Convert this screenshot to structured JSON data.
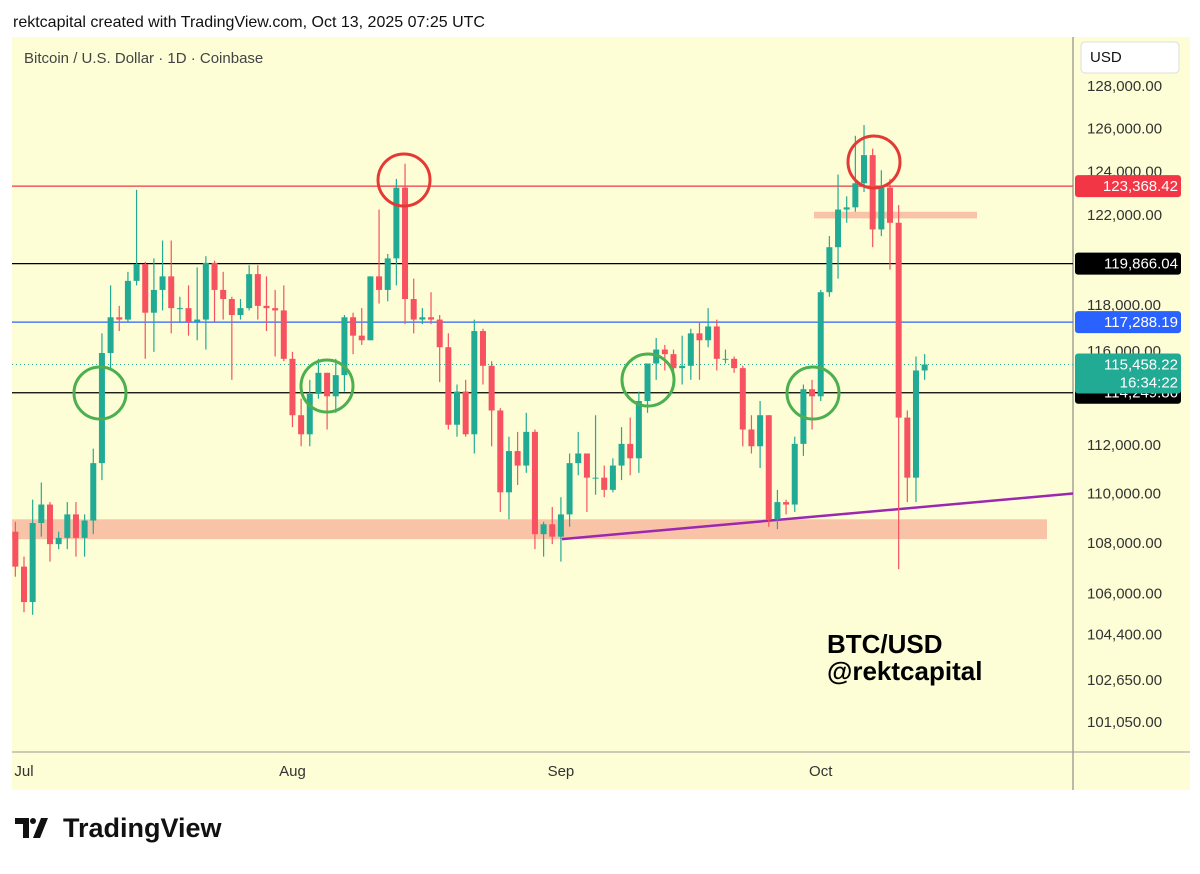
{
  "header": "rektcapital created with TradingView.com, Oct 13, 2025 07:25 UTC",
  "footer": {
    "brand": "TradingView"
  },
  "chart_data": {
    "type": "candlestick",
    "title": "Bitcoin / U.S. Dollar · 1D · Coinbase",
    "currency": "USD",
    "annotations": [
      "BTC/USD",
      "@rektcapital"
    ],
    "log_scale": true,
    "up_color": "#22ab94",
    "down_color": "#f7525f",
    "ylim": [
      99970,
      130400
    ],
    "yticks": [
      {
        "value": 128000,
        "label": "128,000.00"
      },
      {
        "value": 126000,
        "label": "126,000.00"
      },
      {
        "value": 124000,
        "label": "124,000.00"
      },
      {
        "value": 122000,
        "label": "122,000.00"
      },
      {
        "value": 118000,
        "label": "118,000.00"
      },
      {
        "value": 116000,
        "label": "116,000.00"
      },
      {
        "value": 112000,
        "label": "112,000.00"
      },
      {
        "value": 110000,
        "label": "110,000.00"
      },
      {
        "value": 108000,
        "label": "108,000.00"
      },
      {
        "value": 106000,
        "label": "106,000.00"
      },
      {
        "value": 104400,
        "label": "104,400.00"
      },
      {
        "value": 102650,
        "label": "102,650.00"
      },
      {
        "value": 101050,
        "label": "101,050.00"
      }
    ],
    "categories": [
      null,
      "Jul",
      null,
      null,
      null,
      null,
      null,
      null,
      null,
      null,
      null,
      null,
      null,
      null,
      null,
      null,
      null,
      null,
      null,
      null,
      null,
      null,
      null,
      null,
      null,
      null,
      null,
      null,
      null,
      null,
      null,
      null,
      "Aug",
      null,
      null,
      null,
      null,
      null,
      null,
      null,
      null,
      null,
      null,
      null,
      null,
      null,
      null,
      null,
      null,
      null,
      null,
      null,
      null,
      null,
      null,
      null,
      null,
      null,
      null,
      null,
      null,
      null,
      null,
      "Sep",
      null,
      null,
      null,
      null,
      null,
      null,
      null,
      null,
      null,
      null,
      null,
      null,
      null,
      null,
      null,
      null,
      null,
      null,
      null,
      null,
      null,
      null,
      null,
      null,
      null,
      null,
      null,
      null,
      null,
      "Oct",
      null,
      null,
      null,
      null,
      null,
      null,
      null,
      null,
      null,
      null,
      null,
      null
    ],
    "open": [
      108500,
      107100,
      105700,
      108850,
      109600,
      108000,
      108250,
      109200,
      108250,
      108950,
      111300,
      115950,
      117500,
      117400,
      119100,
      119850,
      117700,
      118700,
      119300,
      117900,
      117900,
      117300,
      117400,
      119900,
      118700,
      118300,
      117600,
      117900,
      119400,
      118000,
      117900,
      117800,
      115700,
      113300,
      112500,
      114200,
      115100,
      114100,
      115000,
      117500,
      116700,
      116500,
      119300,
      118700,
      120100,
      123300,
      118300,
      117400,
      117500,
      117400,
      116200,
      112900,
      114300,
      112500,
      116900,
      115400,
      113500,
      110100,
      111800,
      111200,
      112600,
      108400,
      108800,
      108300,
      109200,
      111300,
      111700,
      110700,
      110700,
      110200,
      111200,
      112100,
      111500,
      113900,
      115500,
      116100,
      115900,
      115300,
      115400,
      116800,
      116500,
      117100,
      115700,
      115700,
      115300,
      112700,
      112000,
      113300,
      109000,
      109700,
      109600,
      112100,
      114400,
      114100,
      118600,
      120600,
      122300,
      122400,
      123500,
      124800,
      121400,
      123300,
      121700,
      113200,
      110700,
      115200
    ],
    "high": [
      108900,
      107500,
      109800,
      110500,
      109700,
      108500,
      109700,
      109700,
      109200,
      111900,
      116800,
      118900,
      118000,
      119500,
      123200,
      119950,
      120100,
      120900,
      120900,
      118400,
      118900,
      119700,
      120200,
      120000,
      119500,
      118400,
      118300,
      119800,
      119800,
      119300,
      118700,
      118900,
      116000,
      114000,
      114800,
      115700,
      115100,
      115700,
      117600,
      117700,
      117900,
      119300,
      122300,
      120300,
      123700,
      124400,
      119200,
      117900,
      118600,
      117600,
      116800,
      114600,
      114800,
      117400,
      117000,
      115600,
      113600,
      112400,
      112600,
      113400,
      112700,
      108900,
      109500,
      109900,
      111700,
      112600,
      111700,
      113300,
      111200,
      111500,
      112800,
      113200,
      114300,
      115500,
      116600,
      116300,
      116100,
      116700,
      117000,
      117300,
      117900,
      117400,
      116100,
      115800,
      115400,
      113300,
      113900,
      113300,
      110200,
      109800,
      112400,
      114600,
      114800,
      118700,
      121100,
      123900,
      122900,
      125700,
      126200,
      125100,
      124100,
      123700,
      122500,
      113500,
      115800,
      115900
    ],
    "low": [
      106700,
      105300,
      105200,
      108300,
      107300,
      107800,
      107800,
      107500,
      107500,
      108400,
      110600,
      115300,
      116900,
      117300,
      118900,
      115700,
      116000,
      117800,
      116800,
      117300,
      116700,
      116500,
      116100,
      117300,
      117400,
      114800,
      117400,
      117800,
      117400,
      116900,
      115800,
      115600,
      112800,
      112000,
      112000,
      114000,
      112700,
      113400,
      114300,
      115900,
      116300,
      116500,
      118100,
      118200,
      118900,
      117200,
      116800,
      117200,
      117200,
      114700,
      112700,
      112400,
      112400,
      111700,
      114600,
      112000,
      109300,
      109000,
      110400,
      110900,
      107800,
      107500,
      108000,
      107300,
      108700,
      110800,
      109300,
      110000,
      109900,
      110100,
      110600,
      110800,
      110900,
      113400,
      114800,
      115200,
      114900,
      114600,
      114800,
      114800,
      116200,
      115200,
      115500,
      115100,
      112000,
      111700,
      111100,
      108700,
      108600,
      109200,
      109300,
      111600,
      112700,
      113900,
      118400,
      119200,
      121700,
      122200,
      123100,
      120600,
      121100,
      119600,
      107000,
      109700,
      109700,
      114800
    ],
    "close": [
      107100,
      105700,
      108850,
      109600,
      108000,
      108250,
      109200,
      108250,
      108950,
      111300,
      115950,
      117500,
      117400,
      119100,
      119850,
      117700,
      118700,
      119300,
      117900,
      117900,
      117300,
      117400,
      119900,
      118700,
      118300,
      117600,
      117900,
      119400,
      118000,
      117900,
      117800,
      115700,
      113300,
      112500,
      114200,
      115100,
      114100,
      115000,
      117500,
      116700,
      116500,
      119300,
      118700,
      120100,
      123300,
      118300,
      117400,
      117500,
      117400,
      116200,
      112900,
      114300,
      112500,
      116900,
      115400,
      113500,
      110100,
      111800,
      111200,
      112600,
      108400,
      108800,
      108300,
      109200,
      111300,
      111700,
      110700,
      110700,
      110200,
      111200,
      112100,
      111500,
      113900,
      115500,
      116100,
      115900,
      115300,
      115400,
      116800,
      116500,
      117100,
      115700,
      115700,
      115300,
      112700,
      112000,
      113300,
      109000,
      109700,
      109600,
      112100,
      114400,
      114100,
      118600,
      120600,
      122300,
      122400,
      123500,
      124800,
      121400,
      123300,
      121700,
      113200,
      110700,
      115200,
      115458.22
    ],
    "levels": [
      {
        "value": 123368.42,
        "label": "123,368.42",
        "color": "#f23645"
      },
      {
        "value": 119866.04,
        "label": "119,866.04",
        "color": "#000000"
      },
      {
        "value": 117288.19,
        "label": "117,288.19",
        "color": "#2962ff"
      },
      {
        "value": 114249.86,
        "label": "114,249.86",
        "color": "#000000"
      }
    ],
    "current": {
      "value": 115458.22,
      "label": "115,458.22",
      "countdown": "16:34:22",
      "color": "#22ab94"
    },
    "zones": [
      {
        "from": 108200,
        "to": 109000,
        "color": "#f9c3a8"
      },
      {
        "from": 121900,
        "to": 122200,
        "color": "#f9c3a8"
      }
    ],
    "trendline": {
      "from": 108200,
      "to": 110050,
      "color": "#9c27b0"
    }
  }
}
